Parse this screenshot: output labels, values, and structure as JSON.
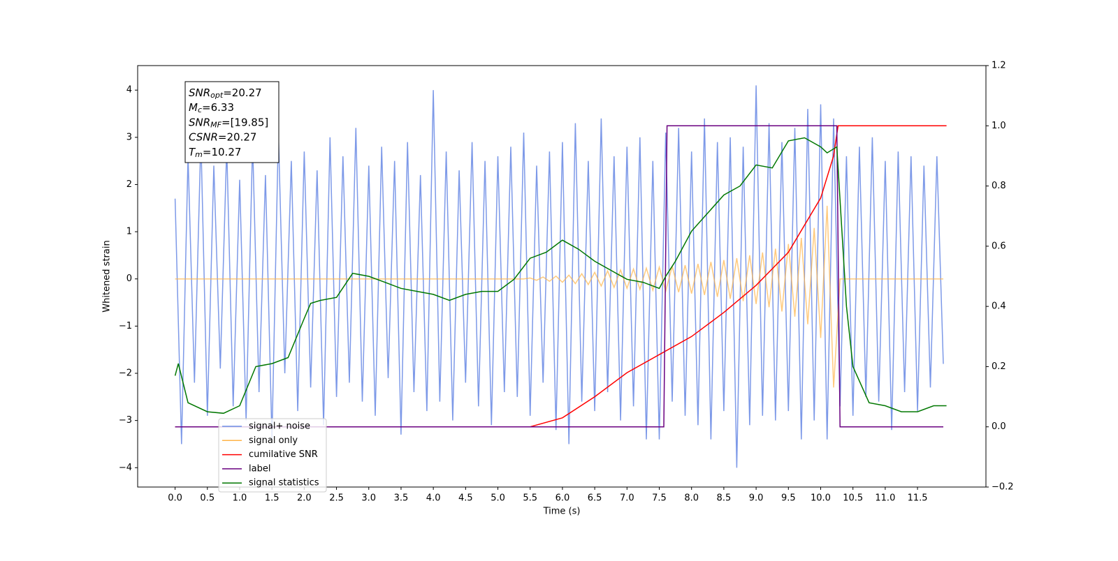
{
  "chart_data": {
    "type": "line",
    "xlabel": "Time (s)",
    "ylabel": "Whitened strain",
    "xlim": [
      -0.58,
      12.56
    ],
    "ylim": [
      -4.41,
      4.52
    ],
    "y2lim": [
      -0.2,
      1.2
    ],
    "xticks": [
      {
        "value": 0,
        "label": "0.0"
      },
      0.5,
      {
        "value": 1,
        "label": "1.0"
      },
      1.5,
      {
        "value": 2,
        "label": "2.0"
      },
      2.5,
      {
        "value": 3,
        "label": "3.0"
      },
      3.5,
      {
        "value": 4,
        "label": "4.0"
      },
      4.5,
      {
        "value": 5,
        "label": "5.0"
      },
      5.5,
      {
        "value": 6,
        "label": "6.0"
      },
      6.5,
      {
        "value": 7,
        "label": "7.0"
      },
      7.5,
      {
        "value": 8,
        "label": "8.0"
      },
      8.5,
      {
        "value": 9,
        "label": "9.0"
      },
      9.5,
      {
        "value": 10,
        "label": "10.0"
      },
      10.5,
      {
        "value": 11,
        "label": "11.0"
      },
      11.5
    ],
    "yticks": [
      {
        "value": -4,
        "label": "−4"
      },
      {
        "value": -3,
        "label": "−3"
      },
      {
        "value": -2,
        "label": "−2"
      },
      {
        "value": -1,
        "label": "−1"
      },
      0,
      1,
      2,
      3,
      4
    ],
    "y2ticks": [
      {
        "value": -0.2,
        "label": "−0.2"
      },
      {
        "value": 0,
        "label": "0.0"
      },
      0.2,
      0.4,
      0.6,
      0.8,
      {
        "value": 1,
        "label": "1.0"
      },
      1.2
    ],
    "legend": "lower left",
    "annotation": [
      {
        "symbol": "SNR",
        "sub": "opt",
        "text": "=20.27"
      },
      {
        "symbol": "M",
        "sub": "c",
        "text": "=6.33"
      },
      {
        "symbol": "SNR",
        "sub": "MF",
        "text": "=[19.85]"
      },
      {
        "symbol": "CSNR",
        "text": "=20.27"
      },
      {
        "symbol": "T",
        "sub": "m",
        "text": "=10.27"
      }
    ],
    "x": [
      0,
      0.1,
      0.2,
      0.3,
      0.4,
      0.5,
      0.6,
      0.7,
      0.8,
      0.9,
      1,
      1.1,
      1.2,
      1.3,
      1.4,
      1.5,
      1.6,
      1.7,
      1.8,
      1.9,
      2,
      2.1,
      2.2,
      2.3,
      2.4,
      2.5,
      2.6,
      2.7,
      2.8,
      2.9,
      3,
      3.1,
      3.2,
      3.3,
      3.4,
      3.5,
      3.6,
      3.7,
      3.8,
      3.9,
      4,
      4.1,
      4.2,
      4.3,
      4.4,
      4.5,
      4.6,
      4.7,
      4.8,
      4.9,
      5,
      5.1,
      5.2,
      5.3,
      5.4,
      5.5,
      5.6,
      5.7,
      5.8,
      5.9,
      6,
      6.1,
      6.2,
      6.3,
      6.4,
      6.5,
      6.6,
      6.7,
      6.8,
      6.9,
      7,
      7.1,
      7.2,
      7.3,
      7.4,
      7.5,
      7.6,
      7.7,
      7.8,
      7.9,
      8,
      8.1,
      8.2,
      8.3,
      8.4,
      8.5,
      8.6,
      8.7,
      8.8,
      8.9,
      9,
      9.1,
      9.2,
      9.3,
      9.4,
      9.5,
      9.6,
      9.7,
      9.8,
      9.9,
      10,
      10.1,
      10.2,
      10.3,
      10.4,
      10.5,
      10.6,
      10.7,
      10.8,
      10.9,
      11,
      11.1,
      11.2,
      11.3,
      11.4,
      11.5,
      11.6,
      11.7,
      11.8,
      11.9
    ],
    "series": [
      {
        "name": "signal+ noise",
        "color": "#6f8ee6",
        "values": [
          1.7,
          -3.5,
          2.6,
          -2.2,
          3.0,
          -2.9,
          2.4,
          -1.9,
          2.8,
          -2.7,
          2.1,
          -3.0,
          2.9,
          -2.4,
          2.2,
          -3.4,
          3.1,
          -2.0,
          2.5,
          -2.8,
          2.7,
          -2.3,
          2.3,
          -3.1,
          3.0,
          -2.5,
          2.6,
          -2.2,
          3.2,
          -2.6,
          2.4,
          -2.9,
          2.8,
          -2.1,
          2.5,
          -3.3,
          2.9,
          -2.4,
          2.2,
          -2.8,
          4.0,
          -2.6,
          2.7,
          -3.0,
          2.3,
          -2.2,
          2.9,
          -2.7,
          2.5,
          -3.1,
          2.6,
          -2.4,
          2.8,
          -2.5,
          3.1,
          -2.9,
          2.4,
          -2.2,
          2.7,
          -3.2,
          2.9,
          -3.5,
          3.3,
          -2.6,
          2.5,
          -2.8,
          3.4,
          -2.4,
          2.6,
          -3.0,
          2.8,
          -2.7,
          3.0,
          -3.4,
          2.5,
          -3.4,
          3.1,
          -2.6,
          3.2,
          -2.9,
          2.7,
          -3.1,
          3.4,
          -3.4,
          2.9,
          -2.8,
          3.0,
          -4.0,
          2.8,
          -3.1,
          4.1,
          -2.9,
          3.3,
          -3.0,
          2.9,
          -2.8,
          3.2,
          -3.4,
          3.6,
          -3.0,
          3.7,
          -3.4,
          3.4,
          -2.7,
          2.6,
          -2.9,
          2.8,
          -2.5,
          3.0,
          -2.6,
          2.5,
          -3.2,
          2.7,
          -2.4,
          2.6,
          -2.8,
          2.4,
          -2.3,
          2.6,
          -1.8
        ]
      },
      {
        "name": "signal only",
        "color": "#ffb347",
        "values": [
          0,
          0,
          0,
          0,
          0,
          0,
          0,
          0,
          0,
          0,
          0,
          0,
          0,
          0,
          0,
          0,
          0,
          0,
          0,
          0,
          0,
          0,
          0,
          0,
          0,
          0,
          0,
          0,
          0,
          0,
          0,
          0,
          0,
          0,
          0,
          0,
          0,
          0,
          0,
          0,
          0,
          0,
          0,
          0,
          0,
          0,
          0,
          0,
          0,
          0,
          0,
          0,
          0,
          0,
          0,
          0.02,
          -0.03,
          0.04,
          -0.05,
          0.06,
          -0.07,
          0.08,
          -0.1,
          0.11,
          -0.12,
          0.14,
          -0.15,
          0.17,
          -0.18,
          0.19,
          -0.2,
          0.21,
          -0.22,
          0.23,
          -0.24,
          0.25,
          -0.26,
          0.27,
          -0.28,
          0.29,
          -0.31,
          0.32,
          -0.34,
          0.36,
          -0.38,
          0.4,
          -0.42,
          0.44,
          -0.47,
          0.5,
          -0.53,
          0.56,
          -0.6,
          0.64,
          -0.69,
          0.74,
          -0.8,
          0.87,
          -0.96,
          1.08,
          -1.25,
          1.55,
          -2.3,
          0,
          0,
          0,
          0,
          0,
          0,
          0,
          0,
          0,
          0,
          0,
          0,
          0,
          0,
          0,
          0,
          0
        ]
      },
      {
        "name": "cumilative SNR",
        "color": "#ff0000",
        "axis": "y2",
        "x": [
          0,
          5.5,
          6.0,
          6.5,
          7.0,
          7.5,
          8.0,
          8.5,
          9.0,
          9.5,
          10.0,
          10.2,
          10.27,
          11.95
        ],
        "values": [
          0,
          0,
          0.03,
          0.1,
          0.18,
          0.24,
          0.3,
          0.38,
          0.47,
          0.58,
          0.76,
          0.9,
          1.0,
          1.0
        ]
      },
      {
        "name": "label",
        "color": "#6a0080",
        "axis": "y2",
        "x": [
          0,
          7.57,
          7.62,
          10.25,
          10.3,
          11.9
        ],
        "values": [
          0,
          0,
          1,
          1,
          0,
          0
        ]
      },
      {
        "name": "signal statistics",
        "color": "#007700",
        "axis": "y2",
        "x": [
          0,
          0.05,
          0.2,
          0.5,
          0.75,
          1.0,
          1.25,
          1.5,
          1.75,
          2.0,
          2.1,
          2.25,
          2.5,
          2.75,
          3.0,
          3.25,
          3.5,
          3.75,
          4.0,
          4.25,
          4.5,
          4.75,
          5.0,
          5.25,
          5.5,
          5.75,
          6.0,
          6.25,
          6.5,
          6.75,
          7.0,
          7.25,
          7.5,
          7.6,
          7.75,
          8.0,
          8.25,
          8.5,
          8.75,
          9.0,
          9.25,
          9.5,
          9.75,
          10.0,
          10.1,
          10.25,
          10.4,
          10.5,
          10.75,
          11.0,
          11.25,
          11.5,
          11.75,
          11.95
        ],
        "values": [
          0.17,
          0.21,
          0.08,
          0.05,
          0.045,
          0.07,
          0.2,
          0.21,
          0.23,
          0.36,
          0.41,
          0.42,
          0.43,
          0.51,
          0.5,
          0.48,
          0.46,
          0.45,
          0.44,
          0.42,
          0.44,
          0.45,
          0.45,
          0.49,
          0.56,
          0.58,
          0.62,
          0.59,
          0.55,
          0.52,
          0.49,
          0.48,
          0.46,
          0.5,
          0.55,
          0.65,
          0.71,
          0.77,
          0.8,
          0.87,
          0.86,
          0.95,
          0.96,
          0.93,
          0.91,
          0.93,
          0.4,
          0.2,
          0.08,
          0.07,
          0.05,
          0.05,
          0.07,
          0.07
        ]
      }
    ]
  }
}
